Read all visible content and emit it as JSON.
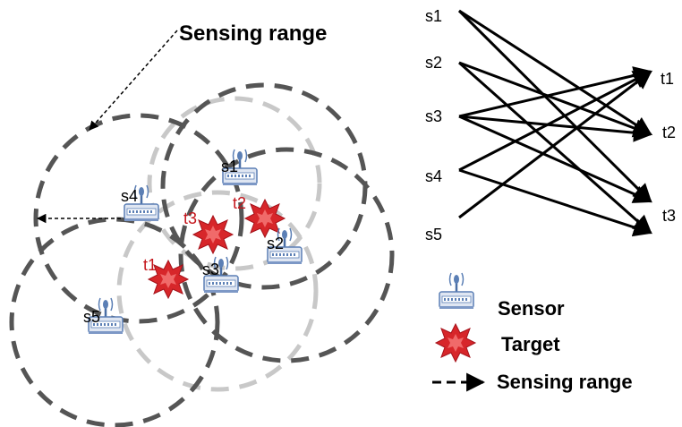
{
  "annotation": {
    "sensing_range_label": "Sensing range"
  },
  "sensors": [
    {
      "id": "s1",
      "label": "s1"
    },
    {
      "id": "s2",
      "label": "s2"
    },
    {
      "id": "s3",
      "label": "s3"
    },
    {
      "id": "s4",
      "label": "s4"
    },
    {
      "id": "s5",
      "label": "s5"
    }
  ],
  "targets": [
    {
      "id": "t1",
      "label": "t1"
    },
    {
      "id": "t2",
      "label": "t2"
    },
    {
      "id": "t3",
      "label": "t3"
    }
  ],
  "bipartite": {
    "left_labels": [
      "s1",
      "s2",
      "s3",
      "s4",
      "s5"
    ],
    "right_labels": [
      "t1",
      "t2",
      "t3"
    ],
    "edges": [
      [
        "s1",
        "t2"
      ],
      [
        "s1",
        "t3"
      ],
      [
        "s2",
        "t2"
      ],
      [
        "s2",
        "t3"
      ],
      [
        "s3",
        "t1"
      ],
      [
        "s3",
        "t2"
      ],
      [
        "s3",
        "t3"
      ],
      [
        "s4",
        "t1"
      ],
      [
        "s4",
        "t3"
      ],
      [
        "s5",
        "t1"
      ]
    ]
  },
  "legend": {
    "sensor_label": "Sensor",
    "target_label": "Target",
    "range_label": "Sensing range"
  },
  "colors": {
    "target_red": "#c4161c",
    "circle_dark": "#555555",
    "circle_light": "#c8c8c8",
    "sensor_blue": "#5b7fb5"
  }
}
